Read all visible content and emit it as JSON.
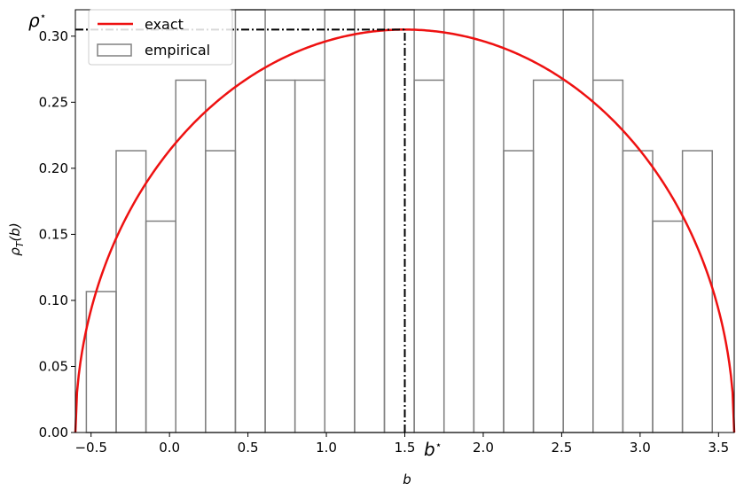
{
  "chart_data": {
    "type": "bar",
    "title": "",
    "xlabel": "b",
    "ylabel": "ρT(b)",
    "xlim": [
      -0.6,
      3.6
    ],
    "ylim": [
      0.0,
      0.32
    ],
    "x_ticks": [
      -0.5,
      0.0,
      0.5,
      1.0,
      1.5,
      2.0,
      2.5,
      3.0,
      3.5
    ],
    "x_tick_labels": [
      "−0.5",
      "0.0",
      "0.5",
      "1.0",
      "1.5",
      "2.0",
      "2.5",
      "3.0",
      "3.5"
    ],
    "y_ticks": [
      0.0,
      0.05,
      0.1,
      0.15,
      0.2,
      0.25,
      0.3
    ],
    "y_tick_labels": [
      "0.00",
      "0.05",
      "0.10",
      "0.15",
      "0.20",
      "0.25",
      "0.30"
    ],
    "grid": false,
    "legend_position": "top-left",
    "series": [
      {
        "name": "exact",
        "type": "line",
        "color": "#ee1111",
        "curve": "semicircle",
        "x_range": [
          -0.6,
          3.6
        ],
        "peak": [
          1.5,
          0.305
        ]
      },
      {
        "name": "empirical",
        "type": "histogram",
        "color": "#808080",
        "bin_edges": [
          -0.53,
          -0.34,
          -0.15,
          0.04,
          0.23,
          0.42,
          0.61,
          0.8,
          0.99,
          1.18,
          1.37,
          1.56,
          1.75,
          1.94,
          2.13,
          2.32,
          2.51,
          2.7,
          2.89,
          3.08,
          3.27,
          3.46
        ],
        "values": [
          0.1067,
          0.2133,
          0.16,
          0.2667,
          0.2133,
          0.32,
          0.2667,
          0.2667,
          0.32,
          0.32,
          0.32,
          0.2667,
          0.32,
          0.32,
          0.2133,
          0.2667,
          0.32,
          0.2667,
          0.2133,
          0.16,
          0.2133
        ]
      }
    ],
    "annotations": {
      "b_star": {
        "label": "b",
        "superscript": "⋆",
        "x": 1.5
      },
      "rho_star": {
        "label": "ρ",
        "superscript": "⋆",
        "y": 0.305
      }
    }
  }
}
